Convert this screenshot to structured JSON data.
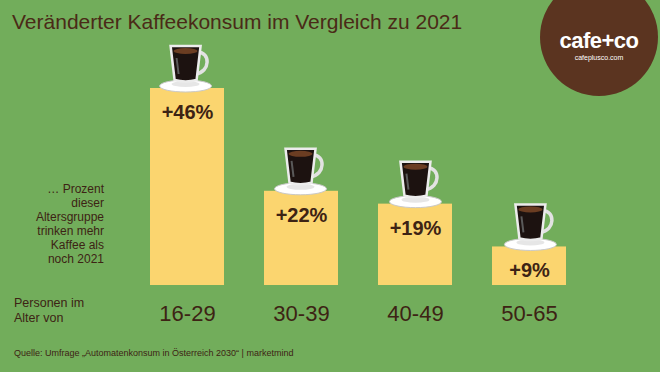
{
  "chart_data": {
    "type": "bar",
    "title": "Veränderter Kaffeekonsum im Vergleich zu 2021",
    "annotation": "… Prozent dieser Altersgruppe trinken mehr Kaffee als noch 2021",
    "xlabel": "Personen im Alter von",
    "categories": [
      "16-29",
      "30-39",
      "40-49",
      "50-65"
    ],
    "values": [
      46,
      22,
      19,
      9
    ],
    "value_labels": [
      "+46%",
      "+22%",
      "+19%",
      "+9%"
    ],
    "color": "#fbd56f",
    "data_labels": true,
    "tick_labels": "x",
    "source": "Quelle: Umfrage „Automatenkonsum in Österreich 2030“ | marketmind",
    "logo": "cafe+co",
    "logo_subtitle": "cafeplusco.com"
  }
}
